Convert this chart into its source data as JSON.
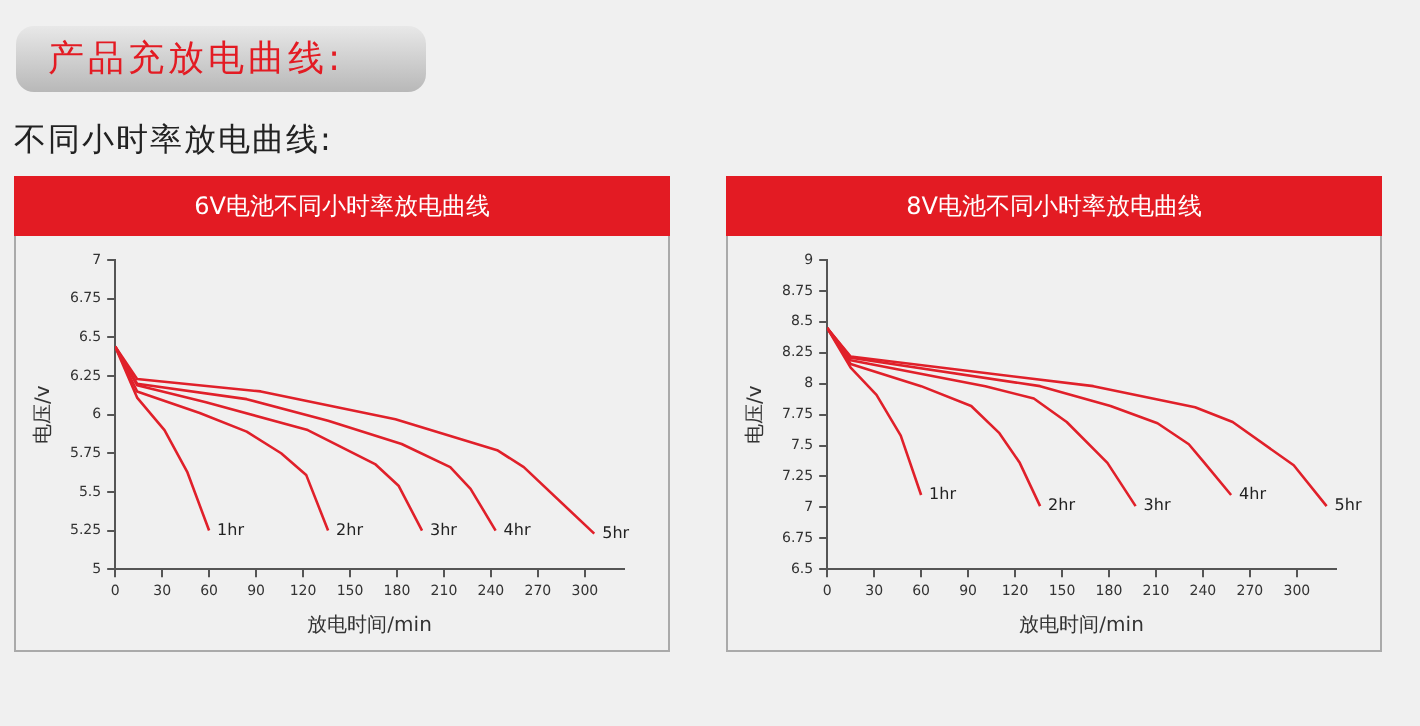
{
  "chart_data": [
    {
      "type": "line",
      "title": "6V电池不同小时率放电曲线",
      "annotations": [
        "产品充放电曲线:",
        "不同小时率放电曲线:"
      ],
      "xlabel": "放电时间/min",
      "ylabel": "电压/v",
      "xlim": [
        0,
        325
      ],
      "xticks": [
        0,
        30,
        60,
        90,
        120,
        150,
        180,
        210,
        240,
        270,
        300
      ],
      "ylim": [
        5,
        7
      ],
      "yticks": [
        5,
        5.25,
        5.5,
        5.75,
        6,
        6.25,
        6.5,
        6.75,
        7
      ],
      "series": [
        {
          "name": "1hr",
          "color": "#e0202a",
          "x": [
            0,
            14,
            31.5,
            46,
            60
          ],
          "values": [
            6.44,
            6.11,
            5.9,
            5.63,
            5.25
          ]
        },
        {
          "name": "2hr",
          "color": "#e0202a",
          "x": [
            0,
            14,
            54,
            84,
            106,
            122,
            136
          ],
          "values": [
            6.44,
            6.15,
            6.01,
            5.89,
            5.75,
            5.61,
            5.25
          ]
        },
        {
          "name": "3hr",
          "color": "#e0202a",
          "x": [
            0,
            14,
            58,
            123,
            166,
            181,
            196
          ],
          "values": [
            6.44,
            6.19,
            6.08,
            5.9,
            5.68,
            5.54,
            5.25
          ]
        },
        {
          "name": "4hr",
          "color": "#e0202a",
          "x": [
            0,
            14,
            84,
            136,
            183,
            214,
            227,
            243
          ],
          "values": [
            6.44,
            6.2,
            6.1,
            5.96,
            5.81,
            5.66,
            5.52,
            5.25
          ]
        },
        {
          "name": "5hr",
          "color": "#e0202a",
          "x": [
            0,
            14,
            93,
            179,
            244,
            261,
            306
          ],
          "values": [
            6.44,
            6.23,
            6.15,
            5.97,
            5.77,
            5.66,
            5.23
          ]
        }
      ]
    },
    {
      "type": "line",
      "title": "8V电池不同小时率放电曲线",
      "xlabel": "放电时间/min",
      "ylabel": "电压/v",
      "xlim": [
        0,
        325
      ],
      "xticks": [
        0,
        30,
        60,
        90,
        120,
        150,
        180,
        210,
        240,
        270,
        300
      ],
      "ylim": [
        6.5,
        9
      ],
      "yticks": [
        6.5,
        6.75,
        7,
        7.25,
        7.5,
        7.75,
        8,
        8.25,
        8.5,
        8.75,
        9
      ],
      "series": [
        {
          "name": "1hr",
          "color": "#e0202a",
          "x": [
            0,
            15,
            31.5,
            47,
            60
          ],
          "values": [
            8.45,
            8.13,
            7.91,
            7.58,
            7.1
          ]
        },
        {
          "name": "2hr",
          "color": "#e0202a",
          "x": [
            0,
            15,
            60,
            92,
            110,
            123,
            136
          ],
          "values": [
            8.45,
            8.16,
            7.98,
            7.82,
            7.6,
            7.36,
            7.01
          ]
        },
        {
          "name": "3hr",
          "color": "#e0202a",
          "x": [
            0,
            15,
            101,
            132,
            153,
            179,
            197
          ],
          "values": [
            8.45,
            8.19,
            7.98,
            7.88,
            7.69,
            7.36,
            7.01
          ]
        },
        {
          "name": "4hr",
          "color": "#e0202a",
          "x": [
            0,
            15,
            136,
            181,
            211,
            231,
            241,
            258
          ],
          "values": [
            8.45,
            8.21,
            7.98,
            7.82,
            7.68,
            7.51,
            7.36,
            7.1
          ]
        },
        {
          "name": "5hr",
          "color": "#e0202a",
          "x": [
            0,
            15,
            170,
            235,
            259,
            298,
            319
          ],
          "values": [
            8.45,
            8.22,
            7.98,
            7.81,
            7.69,
            7.34,
            7.01
          ]
        }
      ]
    }
  ]
}
